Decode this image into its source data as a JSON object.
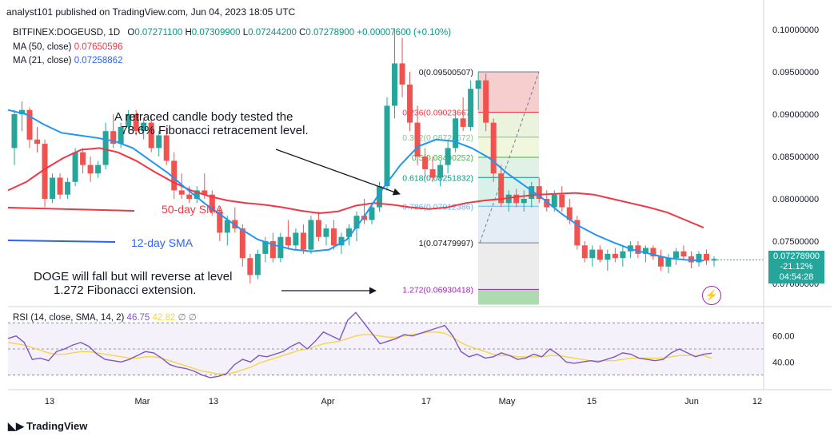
{
  "header": {
    "published": "analyst101 published on TradingView.com, Jun 04, 2023 18:05 UTC"
  },
  "ohlc": {
    "symbol": "BITFINEX:DOGEUSD, 1D",
    "o_label": "O",
    "o": "0.07271100",
    "h_label": "H",
    "h": "0.07309900",
    "l_label": "L",
    "l": "0.07244200",
    "c_label": "C",
    "c": "0.07278900",
    "change": "+0.00007600 (+0.10%)"
  },
  "ma50": {
    "label": "MA (50, close)",
    "value": "0.07650596",
    "color": "#f23645"
  },
  "ma21": {
    "label": "MA (21, close)",
    "value": "0.07258862",
    "color": "#2962ff"
  },
  "price_axis": [
    "0.10000000",
    "0.09500000",
    "0.09000000",
    "0.08500000",
    "0.08000000",
    "0.07500000",
    "0.07000000"
  ],
  "price_tag": {
    "price": "0.07278900",
    "change": "-21.12%",
    "timer": "04:54:28"
  },
  "rsi": {
    "label": "RSI (14, close, SMA, 14, 2)",
    "value1": "46.75",
    "value2": "42.82",
    "levels": [
      "60.00",
      "40.00"
    ]
  },
  "time_axis": [
    "13",
    "Mar",
    "13",
    "Apr",
    "17",
    "May",
    "15",
    "Jun",
    "12"
  ],
  "fib_levels": [
    {
      "ratio": "0",
      "price": "0.09500507"
    },
    {
      "ratio": "0.236",
      "price": "0.09023667"
    },
    {
      "ratio": "0.382",
      "price": "0.08728672"
    },
    {
      "ratio": "0.5",
      "price": "0.08490252"
    },
    {
      "ratio": "0.618",
      "price": "0.08251832"
    },
    {
      "ratio": "0.786",
      "price": "0.07912386"
    },
    {
      "ratio": "1",
      "price": "0.07479997"
    },
    {
      "ratio": "1.272",
      "price": "0.06930418"
    }
  ],
  "annotations": {
    "fib_note": "A retraced candle body tested the\n  78.6% Fibonacci retracement level.",
    "ext_note": "DOGE will fall but will reverse at level\n      1.272 Fibonacci extension.",
    "sma50_label": "50-day SMA",
    "sma12_label": "12-day SMA"
  },
  "brand": "TradingView",
  "colors": {
    "up": "#26a69a",
    "down": "#ef5350",
    "ma50": "#f23645",
    "ma21": "#2196f3",
    "rsi": "#7e57c2",
    "rsi_sma": "#f5d547"
  }
}
